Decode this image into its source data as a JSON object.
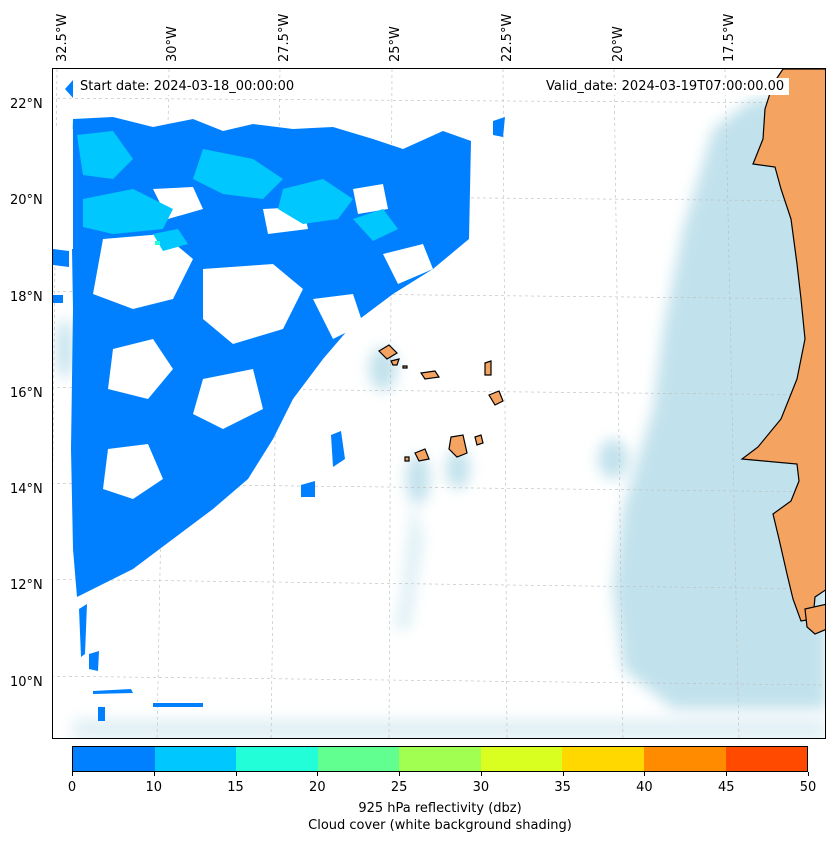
{
  "map": {
    "start_label": "Start date: 2024-03-18_00:00:00",
    "valid_label": "Valid_date: 2024-03-19T07:00:00.00",
    "lon_ticks": [
      "32.5°W",
      "30°W",
      "27.5°W",
      "25°W",
      "22.5°W",
      "20°W",
      "17.5°W"
    ],
    "lat_ticks": [
      "22°N",
      "20°N",
      "18°N",
      "16°N",
      "14°N",
      "12°N",
      "10°N"
    ],
    "colors": {
      "land": "#f4a460",
      "cloud": "#add8e6",
      "reflectivity_low": "#0080ff",
      "reflectivity_mid": "#00c8ff",
      "reflectivity_high": "#22ffd8"
    }
  },
  "colorbar": {
    "ticks": [
      "0",
      "10",
      "15",
      "20",
      "25",
      "30",
      "35",
      "40",
      "45",
      "50"
    ],
    "colors": [
      "#0080ff",
      "#00c8ff",
      "#22ffd8",
      "#60ff90",
      "#a0ff50",
      "#d8ff20",
      "#ffd800",
      "#ff8c00",
      "#ff4a00"
    ],
    "label_line1": "925 hPa reflectivity (dbz)",
    "label_line2": "Cloud cover (white background shading)"
  }
}
